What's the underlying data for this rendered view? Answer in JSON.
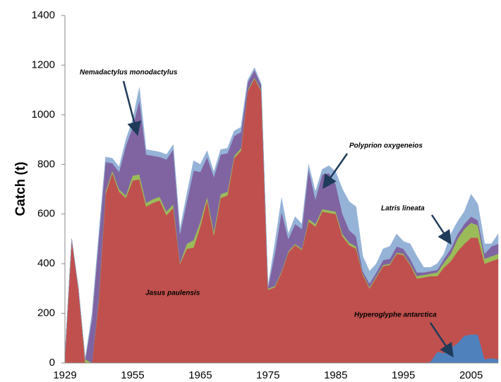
{
  "chart_data": {
    "type": "stacked-area",
    "ylabel": "Catch (t)",
    "categories": [
      "1929",
      null,
      null,
      null,
      null,
      null,
      null,
      null,
      null,
      null,
      "1955",
      null,
      null,
      null,
      null,
      null,
      null,
      null,
      null,
      null,
      "1965",
      null,
      null,
      null,
      null,
      null,
      null,
      null,
      null,
      null,
      "1975",
      null,
      null,
      null,
      null,
      null,
      null,
      null,
      null,
      null,
      "1985",
      null,
      null,
      null,
      null,
      null,
      null,
      null,
      null,
      null,
      "1995",
      null,
      null,
      null,
      null,
      null,
      null,
      null,
      null,
      null,
      "2005",
      null,
      null,
      null,
      null
    ],
    "series": [
      {
        "name": "Hyperoglyphe antarctica",
        "color": "#4f81bd",
        "values": [
          0,
          0,
          0,
          0,
          0,
          0,
          0,
          0,
          0,
          0,
          0,
          0,
          0,
          0,
          0,
          0,
          0,
          0,
          0,
          0,
          0,
          0,
          0,
          0,
          0,
          0,
          0,
          0,
          0,
          0,
          0,
          0,
          0,
          0,
          0,
          0,
          0,
          0,
          0,
          0,
          0,
          0,
          0,
          0,
          0,
          0,
          0,
          0,
          0,
          0,
          0,
          0,
          0,
          0,
          5,
          45,
          40,
          60,
          80,
          110,
          115,
          115,
          15,
          20,
          15
        ]
      },
      {
        "name": "Jasus paulensis",
        "color": "#c0504d",
        "values": [
          30,
          500,
          300,
          0,
          0,
          250,
          680,
          765,
          690,
          665,
          735,
          740,
          630,
          645,
          655,
          595,
          625,
          400,
          460,
          465,
          550,
          655,
          515,
          665,
          675,
          825,
          855,
          1095,
          1145,
          1095,
          295,
          305,
          365,
          445,
          475,
          455,
          570,
          550,
          610,
          605,
          600,
          510,
          475,
          460,
          355,
          300,
          345,
          390,
          395,
          440,
          435,
          395,
          340,
          345,
          345,
          305,
          345,
          350,
          370,
          370,
          390,
          390,
          385,
          390,
          405
        ]
      },
      {
        "name": "Latris lineata",
        "color": "#9bbb59",
        "values": [
          0,
          0,
          0,
          15,
          0,
          10,
          10,
          10,
          10,
          10,
          20,
          20,
          15,
          15,
          15,
          15,
          15,
          5,
          20,
          30,
          20,
          15,
          15,
          15,
          15,
          10,
          10,
          5,
          5,
          5,
          5,
          5,
          5,
          5,
          5,
          5,
          10,
          10,
          10,
          10,
          10,
          10,
          10,
          10,
          5,
          5,
          5,
          5,
          5,
          5,
          5,
          5,
          10,
          10,
          10,
          15,
          20,
          30,
          50,
          60,
          60,
          50,
          20,
          20,
          20
        ]
      },
      {
        "name": "Nemadactylus monodactylus",
        "color": "#8064a2",
        "values": [
          0,
          0,
          0,
          0,
          180,
          240,
          120,
          30,
          70,
          200,
          195,
          300,
          195,
          175,
          160,
          210,
          220,
          115,
          170,
          280,
          200,
          160,
          220,
          160,
          155,
          80,
          65,
          30,
          30,
          20,
          5,
          130,
          240,
          50,
          80,
          80,
          200,
          100,
          140,
          150,
          110,
          80,
          50,
          40,
          10,
          15,
          15,
          20,
          20,
          25,
          20,
          20,
          15,
          10,
          10,
          10,
          15,
          20,
          20,
          20,
          25,
          20,
          20,
          40,
          40
        ]
      },
      {
        "name": "Polyprion oxygeneios",
        "color": "#95b3d7",
        "values": [
          0,
          0,
          0,
          0,
          20,
          20,
          20,
          20,
          20,
          25,
          30,
          50,
          20,
          20,
          20,
          20,
          20,
          20,
          30,
          40,
          30,
          25,
          20,
          20,
          20,
          20,
          20,
          10,
          10,
          5,
          5,
          40,
          55,
          20,
          30,
          20,
          20,
          30,
          20,
          30,
          50,
          100,
          115,
          120,
          60,
          50,
          35,
          45,
          50,
          50,
          30,
          60,
          65,
          20,
          15,
          25,
          20,
          60,
          50,
          50,
          90,
          65,
          40,
          10,
          40
        ]
      }
    ],
    "ylim": [
      0,
      1400
    ],
    "yticks": [
      0,
      200,
      400,
      600,
      800,
      1000,
      1200,
      1400
    ]
  }
}
